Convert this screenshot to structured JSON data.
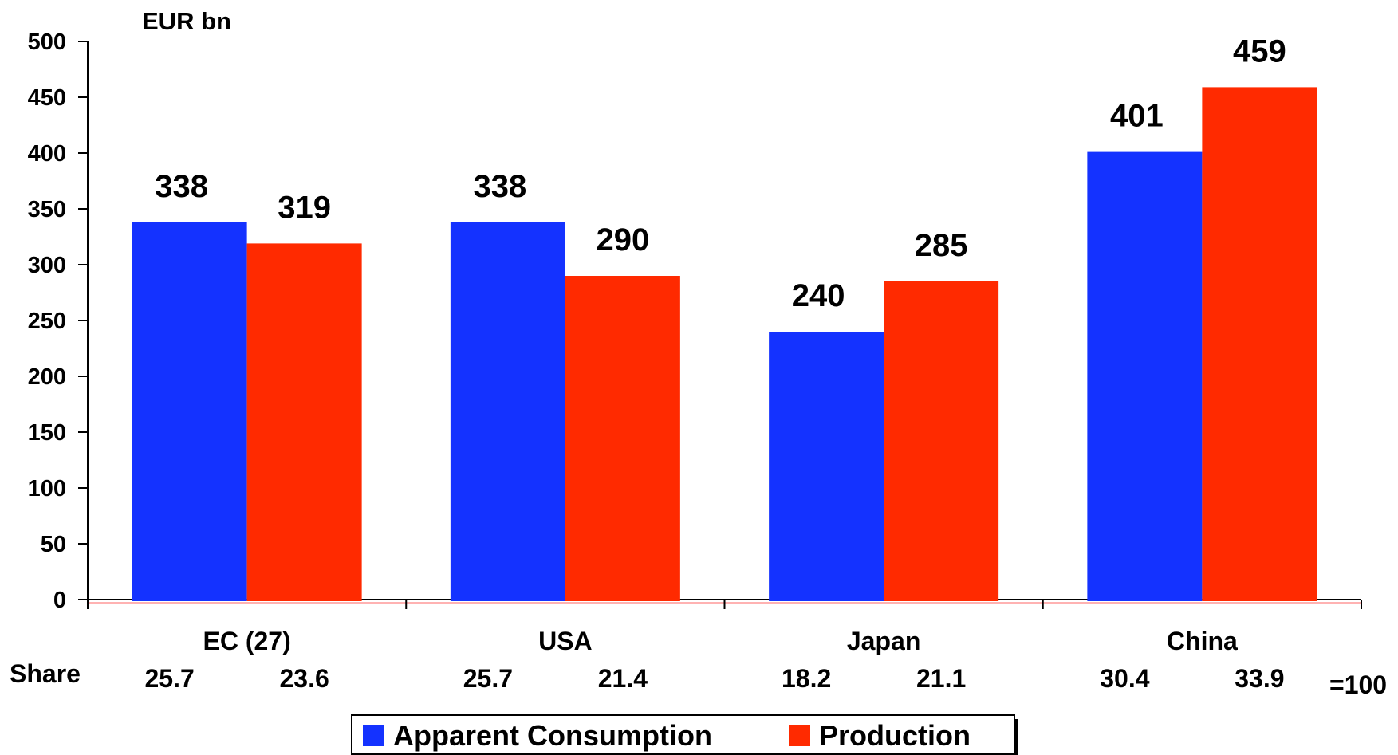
{
  "chart_data": {
    "type": "bar",
    "ylabel": "EUR bn",
    "ylim": [
      0,
      500
    ],
    "yticks": [
      0,
      50,
      100,
      150,
      200,
      250,
      300,
      350,
      400,
      450,
      500
    ],
    "categories": [
      "EC (27)",
      "USA",
      "Japan",
      "China"
    ],
    "series": [
      {
        "name": "Apparent Consumption",
        "color": "#1432ff",
        "values": [
          338,
          338,
          240,
          401
        ],
        "share": [
          "25.7",
          "25.7",
          "18.2",
          "30.4"
        ]
      },
      {
        "name": "Production",
        "color": "#ff2a00",
        "values": [
          319,
          290,
          285,
          459
        ],
        "share": [
          "23.6",
          "21.4",
          "21.1",
          "33.9"
        ]
      }
    ],
    "share_label": "Share",
    "share_note": "=100",
    "legend": "bottom",
    "grid": false
  }
}
